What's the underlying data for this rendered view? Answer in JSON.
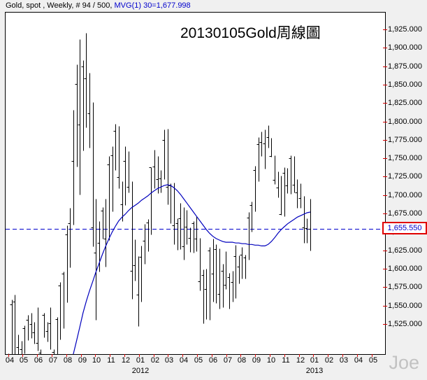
{
  "header": {
    "instrument": "Gold, spot , Weekly, # 94 / 500, ",
    "indicator": "MVG(1) 30=1,677.998",
    "indicator_color": "#0000cc"
  },
  "watermark": "Joe",
  "chart_data": {
    "type": "ohlc-bar",
    "title": "20130105Gold周線圖",
    "bar_color": "#000000",
    "grid": false,
    "y_axis": {
      "side": "right",
      "visible_min": 1485,
      "visible_max": 1949,
      "tick_values": [
        1925,
        1900,
        1875,
        1850,
        1825,
        1800,
        1775,
        1750,
        1725,
        1700,
        1675,
        1650,
        1625,
        1600,
        1575,
        1550,
        1525
      ],
      "tick_labels": [
        "1,925.000",
        "1,900.000",
        "1,875.000",
        "1,850.000",
        "1,825.000",
        "1,800.000",
        "1,775.000",
        "1,750.000",
        "1,725.000",
        "1,700.000",
        "1,675.000",
        "1,650.000",
        "1,625.000",
        "1,600.000",
        "1,575.000",
        "1,550.000",
        "1,525.000"
      ],
      "tick_color": "#d40000"
    },
    "x_axis": {
      "month_labels": [
        "04",
        "05",
        "06",
        "07",
        "08",
        "09",
        "10",
        "11",
        "12",
        "01",
        "02",
        "03",
        "04",
        "05",
        "06",
        "07",
        "08",
        "09",
        "10",
        "11",
        "12",
        "01",
        "02",
        "03",
        "04",
        "05"
      ],
      "year_labels": [
        {
          "label": "2012",
          "month_index": 9
        },
        {
          "label": "2013",
          "month_index": 21
        }
      ],
      "tick_color": "#e00000"
    },
    "reference_line": {
      "value": 1655.55,
      "label": "1,655.550",
      "style": "dashed",
      "line_color": "#0000cc",
      "label_text_color": "#0000cc",
      "label_box_color": "#e00000"
    },
    "bars_hlc": [
      [
        1486,
        1473,
        1479
      ],
      [
        1559,
        1480,
        1553
      ],
      [
        1566,
        1482,
        1556
      ],
      [
        1512,
        1481,
        1495
      ],
      [
        1503,
        1483,
        1492
      ],
      [
        1524,
        1486,
        1520
      ],
      [
        1538,
        1504,
        1532
      ],
      [
        1541,
        1507,
        1526
      ],
      [
        1529,
        1499,
        1515
      ],
      [
        1549,
        1490,
        1500
      ],
      [
        1492,
        1477,
        1487
      ],
      [
        1541,
        1508,
        1538
      ],
      [
        1529,
        1502,
        1516
      ],
      [
        1549,
        1492,
        1527
      ],
      [
        1492,
        1480,
        1488
      ],
      [
        1535,
        1485,
        1533
      ],
      [
        1583,
        1505,
        1578
      ],
      [
        1597,
        1520,
        1594
      ],
      [
        1660,
        1555,
        1648
      ],
      [
        1684,
        1603,
        1663
      ],
      [
        1817,
        1661,
        1747
      ],
      [
        1878,
        1740,
        1852
      ],
      [
        1913,
        1702,
        1797
      ],
      [
        1884,
        1762,
        1876
      ],
      [
        1921,
        1793,
        1859
      ],
      [
        1867,
        1765,
        1812
      ],
      [
        1827,
        1631,
        1657
      ],
      [
        1696,
        1532,
        1623
      ],
      [
        1666,
        1597,
        1636
      ],
      [
        1685,
        1642,
        1680
      ],
      [
        1696,
        1604,
        1642
      ],
      [
        1754,
        1640,
        1743
      ],
      [
        1767,
        1679,
        1755
      ],
      [
        1798,
        1735,
        1788
      ],
      [
        1795,
        1710,
        1725
      ],
      [
        1720,
        1666,
        1688
      ],
      [
        1767,
        1687,
        1747
      ],
      [
        1761,
        1705,
        1712
      ],
      [
        1720,
        1560,
        1598
      ],
      [
        1641,
        1585,
        1606
      ],
      [
        1618,
        1523,
        1566
      ],
      [
        1632,
        1556,
        1617
      ],
      [
        1662,
        1608,
        1639
      ],
      [
        1668,
        1625,
        1664
      ],
      [
        1739,
        1648,
        1739
      ],
      [
        1763,
        1710,
        1740
      ],
      [
        1754,
        1704,
        1723
      ],
      [
        1735,
        1705,
        1724
      ],
      [
        1790,
        1723,
        1776
      ],
      [
        1791,
        1688,
        1712
      ],
      [
        1717,
        1663,
        1714
      ],
      [
        1718,
        1634,
        1660
      ],
      [
        1669,
        1627,
        1663
      ],
      [
        1690,
        1628,
        1669
      ],
      [
        1685,
        1613,
        1631
      ],
      [
        1681,
        1634,
        1658
      ],
      [
        1657,
        1624,
        1643
      ],
      [
        1666,
        1623,
        1663
      ],
      [
        1672,
        1625,
        1642
      ],
      [
        1643,
        1572,
        1584
      ],
      [
        1600,
        1527,
        1592
      ],
      [
        1601,
        1533,
        1573
      ],
      [
        1630,
        1532,
        1626
      ],
      [
        1642,
        1556,
        1594
      ],
      [
        1634,
        1554,
        1628
      ],
      [
        1629,
        1547,
        1567
      ],
      [
        1608,
        1549,
        1598
      ],
      [
        1625,
        1573,
        1579
      ],
      [
        1595,
        1547,
        1590
      ],
      [
        1598,
        1556,
        1583
      ],
      [
        1633,
        1561,
        1618
      ],
      [
        1619,
        1581,
        1604
      ],
      [
        1630,
        1588,
        1620
      ],
      [
        1620,
        1588,
        1616
      ],
      [
        1678,
        1613,
        1670
      ],
      [
        1692,
        1651,
        1687
      ],
      [
        1741,
        1679,
        1735
      ],
      [
        1780,
        1720,
        1770
      ],
      [
        1787,
        1754,
        1773
      ],
      [
        1790,
        1737,
        1771
      ],
      [
        1796,
        1765,
        1780
      ],
      [
        1779,
        1753,
        1754
      ],
      [
        1755,
        1716,
        1722
      ],
      [
        1733,
        1698,
        1711
      ],
      [
        1727,
        1674,
        1675
      ],
      [
        1739,
        1672,
        1731
      ],
      [
        1738,
        1704,
        1714
      ],
      [
        1755,
        1703,
        1751
      ],
      [
        1754,
        1705,
        1715
      ],
      [
        1723,
        1684,
        1705
      ],
      [
        1717,
        1684,
        1697
      ],
      [
        1700,
        1636,
        1657
      ],
      [
        1669,
        1636,
        1656
      ],
      [
        1695.8,
        1626,
        1655.55
      ]
    ],
    "ma_line": {
      "name": "MVG(1) 30",
      "color": "#0000bd",
      "last_value": 1677.998,
      "start_index": 20,
      "values": [
        1485,
        1503,
        1522,
        1541,
        1557,
        1571,
        1584,
        1597,
        1609,
        1621,
        1632,
        1642,
        1651,
        1659,
        1666,
        1671,
        1675,
        1680,
        1684,
        1687,
        1690,
        1694,
        1697,
        1700,
        1704,
        1707,
        1710,
        1712,
        1714,
        1715,
        1714,
        1711,
        1707,
        1702,
        1696,
        1690,
        1684,
        1678,
        1672,
        1666,
        1660,
        1654,
        1649,
        1645,
        1642,
        1640,
        1638,
        1637,
        1637,
        1637,
        1636,
        1636,
        1635,
        1635,
        1634,
        1634,
        1633,
        1633,
        1632,
        1632,
        1634,
        1638,
        1643,
        1649,
        1654,
        1658,
        1662,
        1665,
        1668,
        1671,
        1673,
        1675,
        1677,
        1678
      ]
    }
  }
}
